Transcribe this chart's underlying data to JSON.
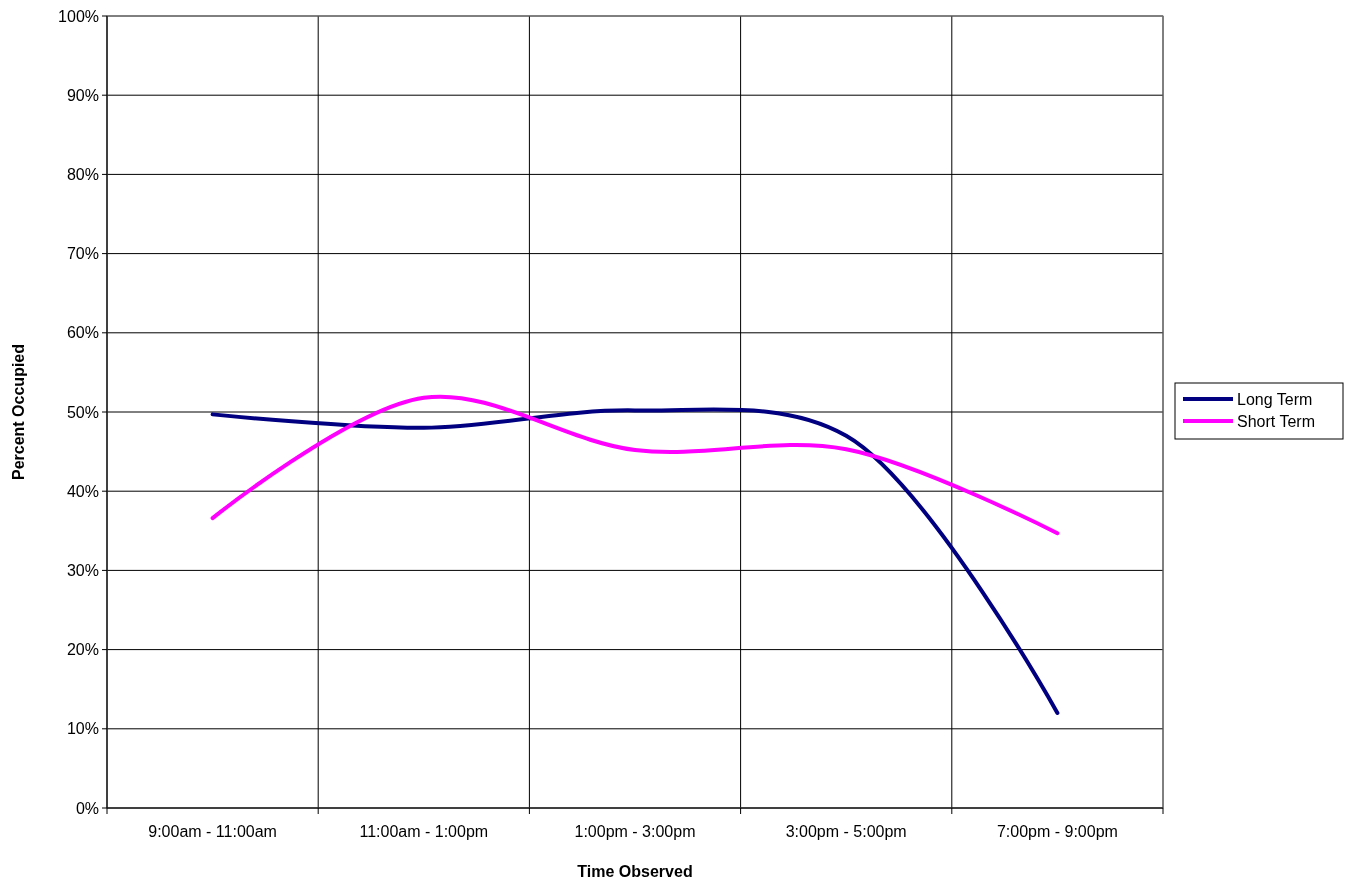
{
  "chart_data": {
    "type": "line",
    "xlabel": "Time Observed",
    "ylabel": "Percent Occupied",
    "categories": [
      "9:00am - 11:00am",
      "11:00am - 1:00pm",
      "1:00pm - 3:00pm",
      "3:00pm - 5:00pm",
      "7:00pm - 9:00pm"
    ],
    "series": [
      {
        "name": "Long Term",
        "color": "#000080",
        "values": [
          49.7,
          48.0,
          50.2,
          47,
          12
        ]
      },
      {
        "name": "Short Term",
        "color": "#ff00ff",
        "values": [
          36.6,
          51.8,
          45.2,
          45.3,
          34.7
        ]
      }
    ],
    "ylim": [
      0,
      100
    ],
    "yticks": [
      {
        "value": 0,
        "label": "0%"
      },
      {
        "value": 10,
        "label": "10%"
      },
      {
        "value": 20,
        "label": "20%"
      },
      {
        "value": 30,
        "label": "30%"
      },
      {
        "value": 40,
        "label": "40%"
      },
      {
        "value": 50,
        "label": "50%"
      },
      {
        "value": 60,
        "label": "60%"
      },
      {
        "value": 70,
        "label": "70%"
      },
      {
        "value": 80,
        "label": "80%"
      },
      {
        "value": 90,
        "label": "90%"
      },
      {
        "value": 100,
        "label": "100%"
      }
    ],
    "grid": true,
    "legend": "right",
    "marker": "none",
    "line_style": "solid"
  }
}
